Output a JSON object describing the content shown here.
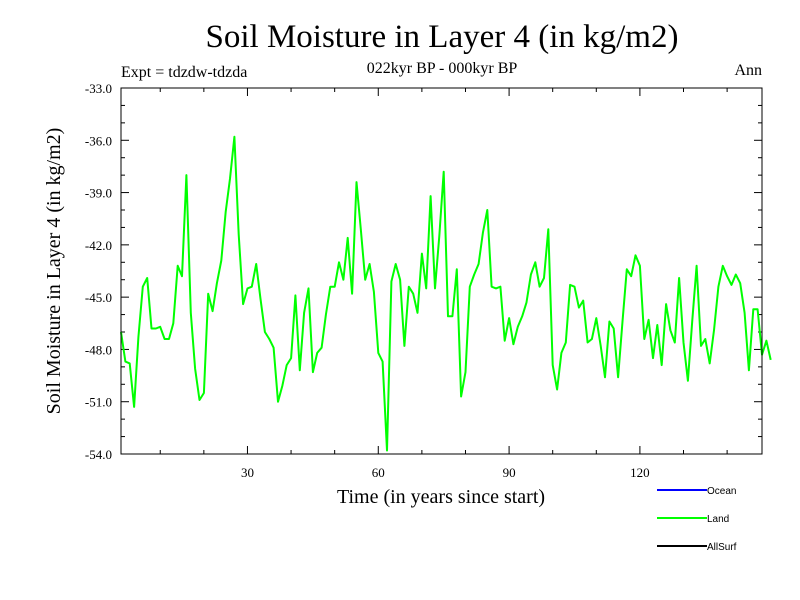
{
  "chart_data": {
    "type": "line",
    "title": "Soil Moisture in Layer 4 (in kg/m2)",
    "subtitle": "022kyr BP - 000kyr BP",
    "left_note": "Expt = tdzdw-tdzda",
    "right_note": "Ann",
    "xlabel": "Time (in years since start)",
    "ylabel": "Soil Moisture in Layer 4 (in kg/m2)",
    "xlim": [
      1,
      148
    ],
    "ylim": [
      -54.0,
      -33.0
    ],
    "xticks": [
      30,
      60,
      90,
      120
    ],
    "xtick_labels": [
      "30",
      "60",
      "90",
      "120"
    ],
    "yticks": [
      -54,
      -51,
      -48,
      -45,
      -42,
      -39,
      -36,
      -33
    ],
    "ytick_labels": [
      "-54.0",
      "-51.0",
      "-48.0",
      "-45.0",
      "-42.0",
      "-39.0",
      "-36.0",
      "-33.0"
    ],
    "legend": [
      {
        "label": "Ocean",
        "color": "#0000ff"
      },
      {
        "label": "Land",
        "color": "#00ff00"
      },
      {
        "label": "AllSurf",
        "color": "#000000"
      }
    ],
    "series": [
      {
        "name": "Land",
        "color": "#00ff00",
        "x_start": 1,
        "values": [
          -47.0,
          -48.7,
          -48.8,
          -51.3,
          -47.3,
          -44.4,
          -43.9,
          -46.8,
          -46.8,
          -46.7,
          -47.4,
          -47.4,
          -46.5,
          -43.2,
          -43.8,
          -38.0,
          -45.9,
          -49.1,
          -50.9,
          -50.5,
          -44.8,
          -45.8,
          -44.2,
          -42.9,
          -40.1,
          -38.2,
          -35.8,
          -41.4,
          -45.4,
          -44.5,
          -44.4,
          -43.1,
          -45.1,
          -47.0,
          -47.4,
          -47.9,
          -51.0,
          -50.1,
          -48.9,
          -48.5,
          -44.9,
          -49.2,
          -45.9,
          -44.5,
          -49.3,
          -48.2,
          -47.9,
          -46.0,
          -44.4,
          -44.4,
          -43.0,
          -44.0,
          -41.6,
          -44.8,
          -38.4,
          -41.1,
          -44.0,
          -43.1,
          -44.7,
          -48.2,
          -48.7,
          -53.8,
          -44.1,
          -43.1,
          -44.0,
          -47.8,
          -44.4,
          -44.8,
          -45.9,
          -42.5,
          -44.5,
          -39.2,
          -44.5,
          -41.5,
          -37.8,
          -46.1,
          -46.1,
          -43.4,
          -50.7,
          -49.3,
          -44.4,
          -43.7,
          -43.1,
          -41.3,
          -40.0,
          -44.4,
          -44.5,
          -44.4,
          -47.5,
          -46.2,
          -47.7,
          -46.7,
          -46.1,
          -45.3,
          -43.7,
          -43.0,
          -44.4,
          -43.9,
          -41.1,
          -48.9,
          -50.3,
          -48.2,
          -47.6,
          -44.3,
          -44.4,
          -45.6,
          -45.2,
          -47.6,
          -47.4,
          -46.2,
          -47.8,
          -49.6,
          -46.4,
          -46.8,
          -49.6,
          -46.4,
          -43.4,
          -43.8,
          -42.6,
          -43.2,
          -47.4,
          -46.3,
          -48.5,
          -46.6,
          -48.9,
          -45.4,
          -46.9,
          -47.6,
          -43.9,
          -47.6,
          -49.8,
          -46.4,
          -43.2,
          -47.8,
          -47.4,
          -48.8,
          -46.9,
          -44.4,
          -43.2,
          -43.8,
          -44.3,
          -43.7,
          -44.2,
          -45.9,
          -49.2,
          -45.7,
          -45.7,
          -48.3,
          -47.5,
          -48.6
        ]
      }
    ]
  }
}
